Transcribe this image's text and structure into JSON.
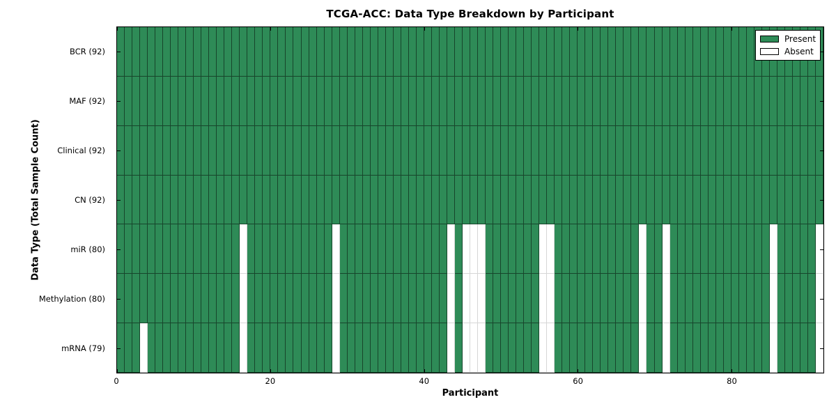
{
  "chart_data": {
    "type": "heatmap",
    "title": "TCGA-ACC: Data Type Breakdown by Participant",
    "xlabel": "Participant",
    "ylabel": "Data Type (Total Sample Count)",
    "n_participants": 92,
    "xlim": [
      0,
      92
    ],
    "x_ticks": [
      0,
      20,
      40,
      60,
      80
    ],
    "grid": false,
    "legend": {
      "position": "upper right",
      "entries": [
        {
          "label": "Present",
          "color": "#2E8B57"
        },
        {
          "label": "Absent",
          "color": "#ffffff"
        }
      ]
    },
    "colors": {
      "present": "#2E8B57",
      "absent": "#ffffff"
    },
    "rows": [
      {
        "label": "BCR (92)",
        "data_type": "BCR",
        "present_count": 92,
        "absent_participants": []
      },
      {
        "label": "MAF (92)",
        "data_type": "MAF",
        "present_count": 92,
        "absent_participants": []
      },
      {
        "label": "Clinical (92)",
        "data_type": "Clinical",
        "present_count": 92,
        "absent_participants": []
      },
      {
        "label": "CN (92)",
        "data_type": "CN",
        "present_count": 92,
        "absent_participants": []
      },
      {
        "label": "miR (80)",
        "data_type": "miR",
        "present_count": 80,
        "absent_participants": [
          16,
          28,
          43,
          45,
          46,
          47,
          55,
          56,
          68,
          71,
          85,
          91
        ]
      },
      {
        "label": "Methylation (80)",
        "data_type": "Methylation",
        "present_count": 80,
        "absent_participants": [
          16,
          28,
          43,
          45,
          46,
          47,
          55,
          56,
          68,
          71,
          85,
          91
        ]
      },
      {
        "label": "mRNA (79)",
        "data_type": "mRNA",
        "present_count": 79,
        "absent_participants": [
          3,
          16,
          28,
          43,
          45,
          46,
          47,
          55,
          56,
          68,
          71,
          85,
          91
        ]
      }
    ]
  }
}
